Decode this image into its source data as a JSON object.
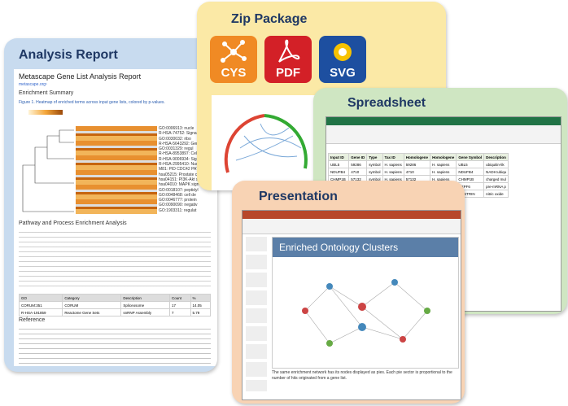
{
  "report": {
    "tab": "Analysis Report",
    "title": "Metascape Gene List Analysis Report",
    "url": "metascape.org¹",
    "section1": "Enrichment Summary",
    "figure_caption": "Figure 1. Heatmap of enriched terms across input gene lists, colored by p-values.",
    "terms": [
      "GO:0006913: nucle",
      "R-HSA-74752: Signal",
      "GO:0030032: ribo",
      "R-HSA-5643292: Gen",
      "GO:0031329: regul",
      "R-HSA-8953897: Cel",
      "R-HSA-9006934: Sign",
      "R-HSA-2995410: Nucl",
      "M81: PID CDC42 PATH",
      "hsa05215: Prostate c",
      "hsa04151: PI3K-Akt s",
      "hsa04010: MAPK sign",
      "GO:0018107: peptidyl",
      "GO:0048468: cell de",
      "GO:0046777: protein",
      "GO:0090090: negativ",
      "GO:1903311: regulat"
    ],
    "section2": "Pathway and Process Enrichment Analysis",
    "table_header": [
      "GO",
      "Category",
      "Description",
      "Count",
      "%"
    ],
    "table_rows": [
      [
        "CORUM:351",
        "CORUM",
        "Spliceosome",
        "17",
        "14.05"
      ],
      [
        "R-HSA-191859",
        "Reactome Gene Sets",
        "snRNP Assembly",
        "7",
        "5.79"
      ]
    ],
    "section3": "Reference"
  },
  "zip": {
    "tab": "Zip Package",
    "icons": [
      "CYS",
      "PDF",
      "SVG"
    ]
  },
  "spreadsheet": {
    "tab": "Spreadsheet",
    "header": [
      "Input ID",
      "Gene ID",
      "Type",
      "Tax ID",
      "Homologene",
      "Homologene",
      "Gene Symbol",
      "Description"
    ],
    "rows": [
      [
        "UBL5",
        "59286",
        "symbol",
        "H. sapiens",
        "59286",
        "H. sapiens",
        "UBL5",
        "ubiquitin-lik"
      ],
      [
        "NDUFB4",
        "4710",
        "symbol",
        "H. sapiens",
        "4710",
        "H. sapiens",
        "NDUFB4",
        "NADH:ubiqu"
      ],
      [
        "CHMP1B",
        "57132",
        "symbol",
        "H. sapiens",
        "57132",
        "H. sapiens",
        "CHMP1B",
        "charged mul"
      ],
      [
        "PRPF6",
        "24148",
        "symbol",
        "H. sapiens",
        "24148",
        "H. sapiens",
        "PRPF6",
        "pre-mRNA p"
      ],
      [
        "NOSTRIN",
        "115677",
        "symbol",
        "H. sapiens",
        "115677",
        "H. sapiens",
        "NOSTRIN",
        "nitric oxide"
      ]
    ]
  },
  "presentation": {
    "tab": "Presentation",
    "slide_title": "Enriched Ontology Clusters",
    "caption": "The same enrichment network has its nodes displayed as pies. Each pie sector is proportional to the number of hits originated from a gene list."
  }
}
